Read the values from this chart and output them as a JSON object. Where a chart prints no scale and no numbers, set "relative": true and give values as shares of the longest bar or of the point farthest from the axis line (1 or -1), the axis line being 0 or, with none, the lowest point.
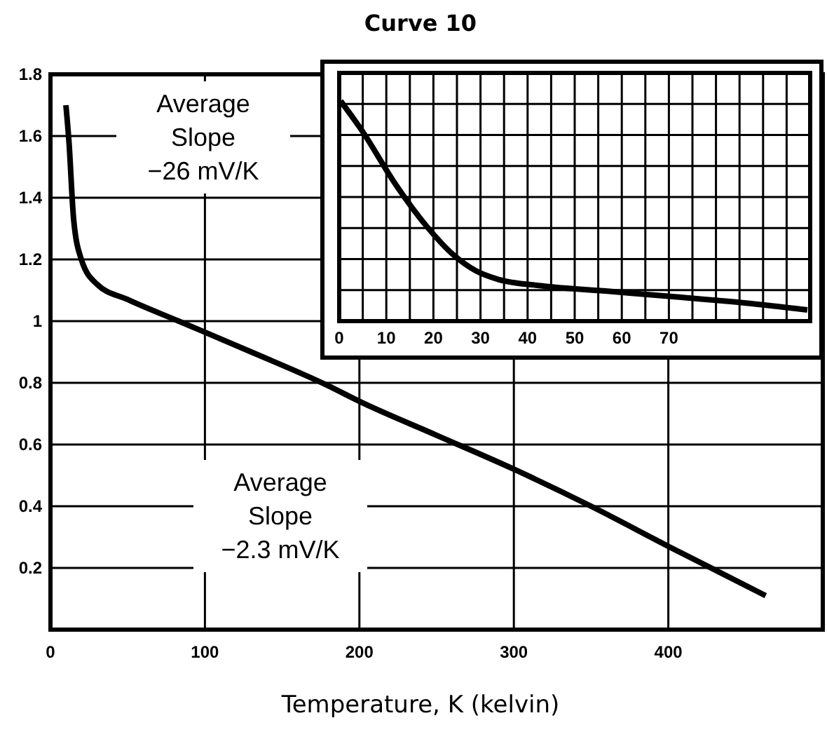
{
  "chart_data": [
    {
      "type": "line",
      "title": "Curve 10",
      "xlabel": "Temperature, K (kelvin)",
      "xlim": [
        0,
        500
      ],
      "xticks": [
        0,
        100,
        200,
        300,
        400
      ],
      "ylim": [
        0,
        1.8
      ],
      "yticks": [
        {
          "value": 0,
          "label": null
        },
        0.2,
        0.4,
        0.6,
        0.8,
        1.0,
        1.2,
        1.4,
        1.6,
        1.8
      ],
      "grid": true,
      "line_style": "solid",
      "marker": "none",
      "annotations": [
        "Average\nSlope\n−26 mV/K",
        "Average\nSlope\n−2.3 mV/K"
      ],
      "series": [
        {
          "color": "#000000",
          "x": [
            10,
            12,
            15,
            20,
            30,
            50,
            83,
            130,
            180,
            200,
            250,
            300,
            350,
            400,
            463
          ],
          "values": [
            1.7,
            1.58,
            1.33,
            1.2,
            1.12,
            1.07,
            1.0,
            0.9,
            0.79,
            0.74,
            0.63,
            0.52,
            0.4,
            0.27,
            0.11
          ]
        }
      ]
    },
    {
      "type": "line",
      "relative": true,
      "xlim": [
        0,
        100
      ],
      "xticks": [
        0,
        {
          "value": 5,
          "label": null
        },
        10,
        {
          "value": 15,
          "label": null
        },
        20,
        {
          "value": 25,
          "label": null
        },
        30,
        {
          "value": 35,
          "label": null
        },
        40,
        {
          "value": 45,
          "label": null
        },
        50,
        {
          "value": 55,
          "label": null
        },
        60,
        {
          "value": 65,
          "label": null
        },
        70,
        {
          "value": 75,
          "label": null
        },
        {
          "value": 80,
          "label": null
        },
        {
          "value": 85,
          "label": null
        },
        {
          "value": 90,
          "label": null
        },
        {
          "value": 95,
          "label": null
        }
      ],
      "grid": true,
      "line_style": "solid",
      "marker": "none",
      "series": [
        {
          "color": "#000000",
          "x": [
            0.3,
            5,
            11.7,
            18.6,
            24.3,
            28.9,
            33.7,
            43.1,
            57.4,
            71.7,
            86,
            99.4
          ],
          "values": [
            1,
            0.86,
            0.63,
            0.43,
            0.3,
            0.23,
            0.19,
            0.16,
            0.135,
            0.11,
            0.083,
            0.051
          ]
        }
      ]
    }
  ]
}
